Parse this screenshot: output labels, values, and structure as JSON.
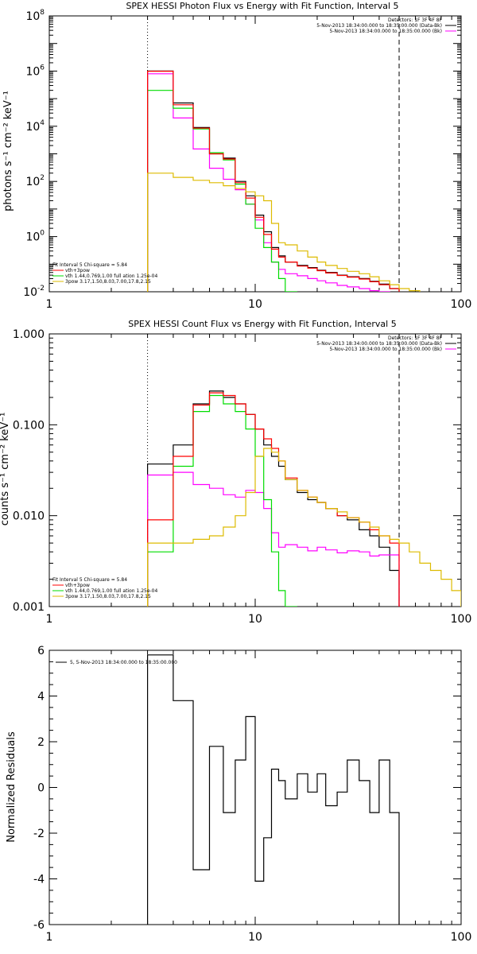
{
  "chart_data": [
    {
      "type": "line",
      "title": "SPEX HESSI Photon Flux vs Energy with Fit Function, Interval 5",
      "xlabel": "",
      "ylabel": "photons s⁻¹ cm⁻² keV⁻¹",
      "xlog": true,
      "ylog": true,
      "xlim": [
        1,
        100
      ],
      "ylim": [
        0.01,
        100000000
      ],
      "x_ticks": [
        {
          "v": 1,
          "label": "1"
        },
        {
          "v": 10,
          "label": "10"
        },
        {
          "v": 100,
          "label": "100"
        }
      ],
      "y_ticks": [
        {
          "v": 0.01,
          "base": "10",
          "exp": "-2"
        },
        {
          "v": 1,
          "base": "10",
          "exp": "0"
        },
        {
          "v": 100,
          "base": "10",
          "exp": "2"
        },
        {
          "v": 10000,
          "base": "10",
          "exp": "4"
        },
        {
          "v": 1000000,
          "base": "10",
          "exp": "6"
        },
        {
          "v": 100000000,
          "base": "10",
          "exp": "8"
        }
      ],
      "vlines": [
        {
          "x": 3,
          "style": "dotted"
        },
        {
          "x": 50,
          "style": "dashed"
        }
      ],
      "legend_top": [
        "Detectors: 1F 3F 4F 8F",
        "5-Nov-2013 18:34:00.000 to 18:35:00.000 (Data-Bk)",
        "5-Nov-2013 18:34:00.000 to 18:35:00.000 (Bk)"
      ],
      "legend_top_colors": [
        null,
        "#000000",
        "#ff00ff"
      ],
      "legend_bottom": [
        "Fit Interval 5   Chi-square = 5.84",
        "vth+3pow",
        "vth 1.44,0.769,1.00  full ation 1.25e-04",
        "3pow 3.17,1.50,8.03,7.00,17.8,2.15"
      ],
      "legend_bottom_colors": [
        null,
        "#ff0000",
        "#00dd00",
        "#ddbb00"
      ],
      "series": [
        {
          "color": "#000000",
          "edges": [
            3,
            4,
            5,
            6,
            7,
            8,
            9,
            10,
            11,
            12,
            13,
            14,
            16,
            18,
            20,
            22,
            25,
            28,
            32,
            36,
            40,
            45,
            50
          ],
          "values": [
            1000000,
            70000,
            9000,
            1000,
            700,
            100,
            30,
            6,
            1.5,
            0.4,
            0.2,
            0.12,
            0.09,
            0.075,
            0.06,
            0.05,
            0.04,
            0.035,
            0.03,
            0.024,
            0.019,
            0.013
          ]
        },
        {
          "color": "#ff00ff",
          "edges": [
            3,
            4,
            5,
            6,
            7,
            8,
            9,
            10,
            11,
            12,
            13,
            14,
            16,
            18,
            20,
            22,
            25,
            28,
            32,
            36,
            40,
            45,
            50
          ],
          "values": [
            800000,
            20000,
            1500,
            300,
            120,
            50,
            15,
            4,
            0.6,
            0.12,
            0.065,
            0.045,
            0.038,
            0.03,
            0.025,
            0.021,
            0.017,
            0.015,
            0.013,
            0.011,
            0.01,
            0.009
          ]
        },
        {
          "color": "#00dd00",
          "edges": [
            3,
            4,
            5,
            6,
            7,
            8,
            9,
            10,
            11,
            12,
            13,
            14,
            16
          ],
          "values": [
            200000,
            45000,
            8000,
            1100,
            600,
            80,
            15,
            2,
            0.4,
            0.12,
            0.03,
            0.01
          ]
        },
        {
          "color": "#ff0000",
          "edges": [
            3,
            4,
            5,
            6,
            7,
            8,
            9,
            10,
            11,
            12,
            13,
            14,
            16,
            18,
            20,
            22,
            25,
            28,
            32,
            36,
            40,
            45,
            50
          ],
          "values": [
            990000,
            60000,
            8500,
            1000,
            650,
            90,
            25,
            5,
            1.2,
            0.35,
            0.18,
            0.12,
            0.085,
            0.072,
            0.058,
            0.048,
            0.039,
            0.034,
            0.029,
            0.023,
            0.018,
            0.013
          ]
        },
        {
          "color": "#ddbb00",
          "edges": [
            3,
            4,
            5,
            6,
            7,
            8,
            9,
            10,
            11,
            12,
            13,
            14,
            16,
            18,
            20,
            22,
            25,
            28,
            32,
            36,
            40,
            45,
            50,
            56,
            63,
            71,
            80
          ],
          "values": [
            200,
            140,
            110,
            90,
            70,
            55,
            42,
            30,
            20,
            3,
            0.6,
            0.5,
            0.3,
            0.18,
            0.12,
            0.09,
            0.07,
            0.055,
            0.045,
            0.035,
            0.025,
            0.018,
            0.013,
            0.011,
            0.008,
            0.006
          ]
        }
      ]
    },
    {
      "type": "line",
      "title": "SPEX HESSI Count Flux vs Energy with Fit Function, Interval 5",
      "xlabel": "",
      "ylabel": "counts s⁻¹ cm⁻² keV⁻¹",
      "xlog": true,
      "ylog": true,
      "xlim": [
        1,
        100
      ],
      "ylim": [
        0.001,
        1
      ],
      "x_ticks": [
        {
          "v": 1,
          "label": "1"
        },
        {
          "v": 10,
          "label": "10"
        },
        {
          "v": 100,
          "label": "100"
        }
      ],
      "y_ticks": [
        {
          "v": 0.001,
          "label": "0.001"
        },
        {
          "v": 0.01,
          "label": "0.010"
        },
        {
          "v": 0.1,
          "label": "0.100"
        },
        {
          "v": 1,
          "label": "1.000"
        }
      ],
      "vlines": [
        {
          "x": 3,
          "style": "dotted"
        },
        {
          "x": 50,
          "style": "dashed"
        }
      ],
      "legend_top": [
        "Detectors: 1F 3F 4F 8F",
        "5-Nov-2013 18:34:00.000 to 18:35:00.000 (Data-Bk)",
        "5-Nov-2013 18:34:00.000 to 18:35:00.000 (Bk)"
      ],
      "legend_top_colors": [
        null,
        "#000000",
        "#ff00ff"
      ],
      "legend_bottom": [
        "Fit Interval 5   Chi-square = 5.84",
        "vth+3pow",
        "vth 1.44,0.769,1.00  full ation 1.25e-04",
        "3pow 3.17,1.50,8.03,7.00,17.8,2.15"
      ],
      "legend_bottom_colors": [
        null,
        "#ff0000",
        "#00dd00",
        "#ddbb00"
      ],
      "series": [
        {
          "color": "#000000",
          "edges": [
            3,
            4,
            5,
            6,
            7,
            8,
            9,
            10,
            11,
            12,
            13,
            14,
            16,
            18,
            20,
            22,
            25,
            28,
            32,
            36,
            40,
            45,
            50
          ],
          "values": [
            0.037,
            0.06,
            0.17,
            0.235,
            0.2,
            0.17,
            0.13,
            0.09,
            0.06,
            0.045,
            0.035,
            0.025,
            0.018,
            0.015,
            0.014,
            0.012,
            0.01,
            0.009,
            0.007,
            0.006,
            0.0045,
            0.0025
          ]
        },
        {
          "color": "#ff00ff",
          "edges": [
            3,
            4,
            5,
            6,
            7,
            8,
            9,
            10,
            11,
            12,
            13,
            14,
            16,
            18,
            20,
            22,
            25,
            28,
            32,
            36,
            40,
            45,
            50
          ],
          "values": [
            0.028,
            0.03,
            0.022,
            0.02,
            0.017,
            0.016,
            0.019,
            0.018,
            0.012,
            0.0065,
            0.0045,
            0.0048,
            0.0045,
            0.0041,
            0.0045,
            0.0042,
            0.0039,
            0.0041,
            0.004,
            0.0036,
            0.0037,
            0.0037
          ]
        },
        {
          "color": "#00dd00",
          "edges": [
            3,
            4,
            5,
            6,
            7,
            8,
            9,
            10,
            11,
            12,
            13,
            14,
            16
          ],
          "values": [
            0.004,
            0.035,
            0.14,
            0.21,
            0.17,
            0.14,
            0.09,
            0.045,
            0.015,
            0.004,
            0.0015,
            0.001
          ]
        },
        {
          "color": "#ff0000",
          "edges": [
            3,
            4,
            5,
            6,
            7,
            8,
            9,
            10,
            11,
            12,
            13,
            14,
            16,
            18,
            20,
            22,
            25,
            28,
            32,
            36,
            40,
            45,
            50
          ],
          "values": [
            0.009,
            0.045,
            0.165,
            0.225,
            0.21,
            0.17,
            0.13,
            0.09,
            0.07,
            0.055,
            0.04,
            0.026,
            0.019,
            0.016,
            0.014,
            0.012,
            0.01,
            0.0095,
            0.0085,
            0.007,
            0.006,
            0.005
          ]
        },
        {
          "color": "#ddbb00",
          "edges": [
            3,
            4,
            5,
            6,
            7,
            8,
            9,
            10,
            11,
            12,
            13,
            14,
            16,
            18,
            20,
            22,
            25,
            28,
            32,
            36,
            40,
            45,
            50,
            56,
            63,
            71,
            80,
            90,
            100
          ],
          "values": [
            0.005,
            0.005,
            0.0055,
            0.006,
            0.0075,
            0.01,
            0.018,
            0.045,
            0.055,
            0.05,
            0.04,
            0.025,
            0.019,
            0.016,
            0.014,
            0.012,
            0.011,
            0.0095,
            0.0085,
            0.0075,
            0.006,
            0.0055,
            0.005,
            0.004,
            0.003,
            0.0025,
            0.002,
            0.0015
          ]
        }
      ]
    },
    {
      "type": "line",
      "title": "",
      "xlabel": "",
      "ylabel": "Normalized Residuals",
      "xlog": true,
      "ylog": false,
      "xlim": [
        1,
        100
      ],
      "ylim": [
        -6,
        6
      ],
      "x_ticks": [
        {
          "v": 1,
          "label": "1"
        },
        {
          "v": 10,
          "label": "10"
        },
        {
          "v": 100,
          "label": "100"
        }
      ],
      "y_ticks": [
        {
          "v": -6,
          "label": "-6"
        },
        {
          "v": -4,
          "label": "-4"
        },
        {
          "v": -2,
          "label": "-2"
        },
        {
          "v": 0,
          "label": "0"
        },
        {
          "v": 2,
          "label": "2"
        },
        {
          "v": 4,
          "label": "4"
        },
        {
          "v": 6,
          "label": "6"
        }
      ],
      "legend_top_left": "5, 5-Nov-2013 18:34:00.000 to 18:35:00.000",
      "series": [
        {
          "color": "#000000",
          "edges": [
            3,
            4,
            5,
            6,
            7,
            8,
            9,
            10,
            11,
            12,
            13,
            14,
            16,
            18,
            20,
            22,
            25,
            28,
            32,
            36,
            40,
            45,
            50
          ],
          "values": [
            5.8,
            3.8,
            -3.6,
            1.8,
            -1.1,
            1.2,
            3.1,
            -4.1,
            -2.2,
            0.8,
            0.3,
            -0.5,
            0.6,
            -0.2,
            0.6,
            -0.8,
            -0.2,
            1.2,
            0.3,
            -1.1,
            1.2,
            -1.1
          ]
        }
      ]
    }
  ]
}
